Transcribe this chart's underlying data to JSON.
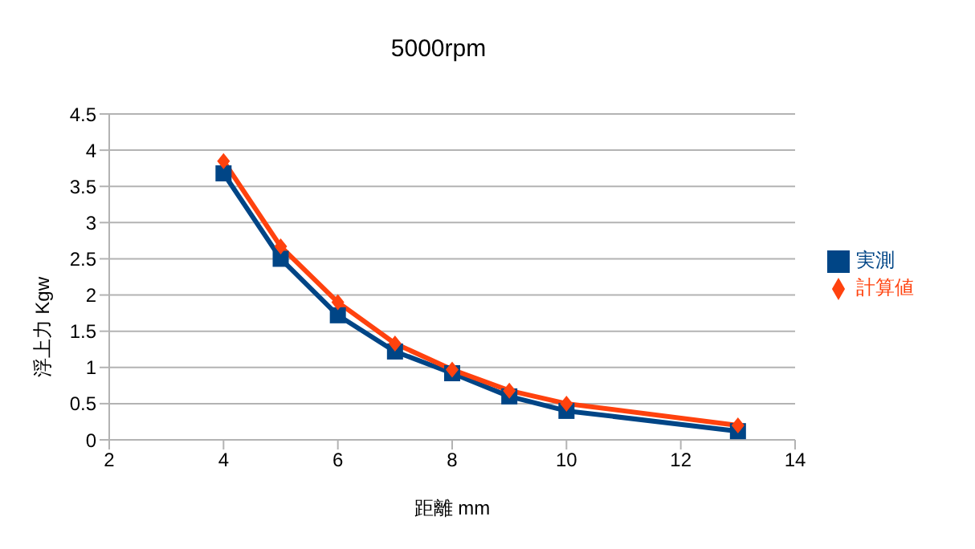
{
  "chart_data": {
    "type": "line",
    "title": "5000rpm",
    "xlabel": "距離 mm",
    "ylabel": "浮上力 Kgw",
    "x": [
      4,
      5,
      6,
      7,
      8,
      9,
      10,
      13
    ],
    "series": [
      {
        "name": "実測",
        "color": "#004586",
        "marker": "square",
        "values": [
          3.68,
          2.5,
          1.72,
          1.22,
          0.92,
          0.6,
          0.4,
          0.12
        ]
      },
      {
        "name": "計算値",
        "color": "#ff420e",
        "marker": "diamond",
        "values": [
          3.85,
          2.67,
          1.9,
          1.33,
          0.97,
          0.68,
          0.5,
          0.2
        ]
      }
    ],
    "xlim": [
      2,
      14
    ],
    "xticks": [
      2,
      4,
      6,
      8,
      10,
      12,
      14
    ],
    "ylim": [
      0,
      4.5
    ],
    "yticks": [
      0,
      0.5,
      1,
      1.5,
      2,
      2.5,
      3,
      3.5,
      4,
      4.5
    ],
    "grid": "y",
    "legend": "right"
  }
}
